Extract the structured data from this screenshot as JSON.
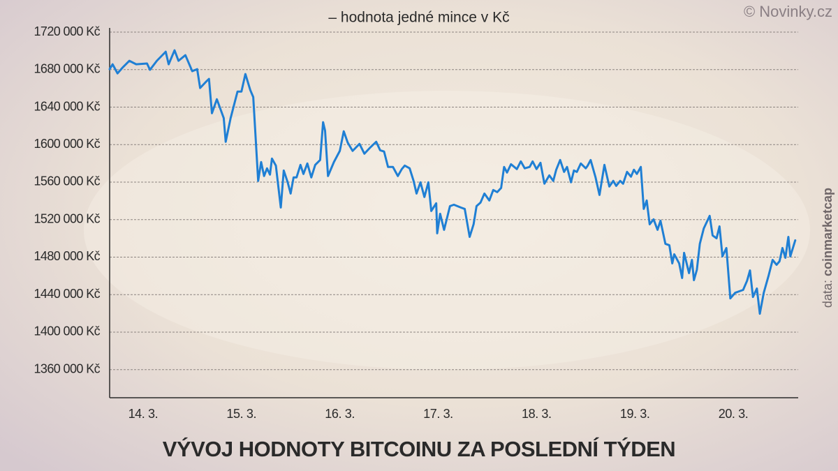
{
  "chart_data": {
    "type": "line",
    "title": "VÝVOJ HODNOTY BITCOINU ZA POSLEDNÍ TÝDEN",
    "subtitle": "– hodnota jedné mince v Kč",
    "copyright": "© Novinky.cz",
    "source_prefix": "data:",
    "source": "coinmarketcap",
    "color": "#1f7fd4",
    "grid": true,
    "xlim": [
      13.66,
      20.66
    ],
    "xticks": [
      {
        "value": 14,
        "label": "14. 3."
      },
      {
        "value": 15,
        "label": "15. 3."
      },
      {
        "value": 16,
        "label": "16. 3."
      },
      {
        "value": 17,
        "label": "17. 3."
      },
      {
        "value": 18,
        "label": "18. 3."
      },
      {
        "value": 19,
        "label": "19. 3."
      },
      {
        "value": 20,
        "label": "20. 3."
      }
    ],
    "ylim": [
      1330000,
      1723000
    ],
    "yticks": [
      {
        "value": 1360000,
        "label": "1360 000 Kč"
      },
      {
        "value": 1400000,
        "label": "1400 000 Kč"
      },
      {
        "value": 1440000,
        "label": "1440 000 Kč"
      },
      {
        "value": 1480000,
        "label": "1480 000 Kč"
      },
      {
        "value": 1520000,
        "label": "1520 000 Kč"
      },
      {
        "value": 1560000,
        "label": "1560 000 Kč"
      },
      {
        "value": 1600000,
        "label": "1600 000 Kč"
      },
      {
        "value": 1640000,
        "label": "1640 000 Kč"
      },
      {
        "value": 1680000,
        "label": "1680 000 Kč"
      },
      {
        "value": 1720000,
        "label": "1720 000 Kč"
      }
    ],
    "x": [
      13.66,
      13.69,
      13.74,
      13.79,
      13.86,
      13.93,
      14.04,
      14.07,
      14.14,
      14.23,
      14.26,
      14.32,
      14.36,
      14.43,
      14.5,
      14.55,
      14.58,
      14.64,
      14.67,
      14.7,
      14.75,
      14.82,
      14.84,
      14.89,
      14.96,
      15.0,
      15.04,
      15.09,
      15.12,
      15.17,
      15.2,
      15.23,
      15.26,
      15.29,
      15.31,
      15.35,
      15.4,
      15.43,
      15.47,
      15.5,
      15.53,
      15.56,
      15.6,
      15.63,
      15.67,
      15.71,
      15.75,
      15.8,
      15.83,
      15.85,
      15.88,
      15.94,
      16.0,
      16.04,
      16.08,
      16.13,
      16.2,
      16.25,
      16.31,
      16.37,
      16.41,
      16.45,
      16.49,
      16.54,
      16.59,
      16.63,
      16.66,
      16.71,
      16.75,
      16.78,
      16.82,
      16.86,
      16.9,
      16.93,
      16.98,
      16.99,
      17.02,
      17.06,
      17.12,
      17.16,
      17.23,
      17.27,
      17.32,
      17.36,
      17.39,
      17.43,
      17.47,
      17.52,
      17.56,
      17.6,
      17.64,
      17.67,
      17.7,
      17.74,
      17.8,
      17.84,
      17.88,
      17.93,
      17.96,
      18.0,
      18.04,
      18.08,
      18.13,
      18.17,
      18.2,
      18.24,
      18.28,
      18.31,
      18.35,
      18.38,
      18.41,
      18.45,
      18.5,
      18.52,
      18.55,
      18.6,
      18.64,
      18.69,
      18.74,
      18.78,
      18.81,
      18.85,
      18.88,
      18.92,
      18.96,
      18.99,
      19.02,
      19.06,
      19.09,
      19.12,
      19.15,
      19.19,
      19.23,
      19.26,
      19.31,
      19.35,
      19.38,
      19.4,
      19.45,
      19.48,
      19.5,
      19.55,
      19.58,
      19.6,
      19.63,
      19.66,
      19.7,
      19.76,
      19.79,
      19.83,
      19.86,
      19.89,
      19.93,
      19.97,
      20.02,
      20.06,
      20.1,
      20.14,
      20.17,
      20.2,
      20.24,
      20.27,
      20.31,
      20.36,
      20.4,
      20.44,
      20.47,
      20.5,
      20.53,
      20.56,
      20.58,
      20.63
    ],
    "values": [
      1680500,
      1685700,
      1676000,
      1682000,
      1689400,
      1685700,
      1686500,
      1679800,
      1689400,
      1699100,
      1685700,
      1700600,
      1689400,
      1695400,
      1678300,
      1680500,
      1660400,
      1667100,
      1670100,
      1633500,
      1648400,
      1628300,
      1603000,
      1628300,
      1656600,
      1656600,
      1675300,
      1658100,
      1650700,
      1561300,
      1581400,
      1566500,
      1574700,
      1568000,
      1585100,
      1577600,
      1532900,
      1572400,
      1559800,
      1547800,
      1565000,
      1565000,
      1578400,
      1568700,
      1579900,
      1565000,
      1578400,
      1583600,
      1623900,
      1614900,
      1566500,
      1581400,
      1593300,
      1614200,
      1602200,
      1593300,
      1600800,
      1590300,
      1597000,
      1603000,
      1594000,
      1592600,
      1576200,
      1576200,
      1566500,
      1573900,
      1577600,
      1574700,
      1561300,
      1547800,
      1559800,
      1544100,
      1559800,
      1529200,
      1537400,
      1505400,
      1526200,
      1509100,
      1534400,
      1535900,
      1532900,
      1531400,
      1501600,
      1515000,
      1534400,
      1538100,
      1547800,
      1540400,
      1551600,
      1549300,
      1553800,
      1576200,
      1570200,
      1579100,
      1573900,
      1582100,
      1574700,
      1576200,
      1582100,
      1573900,
      1580600,
      1558300,
      1567200,
      1561300,
      1573200,
      1583600,
      1570900,
      1576200,
      1559800,
      1572400,
      1570900,
      1579900,
      1574700,
      1577600,
      1583600,
      1565000,
      1546300,
      1578400,
      1555300,
      1561300,
      1556000,
      1561300,
      1558300,
      1570900,
      1565800,
      1573200,
      1568700,
      1576200,
      1531400,
      1540400,
      1515000,
      1520300,
      1509100,
      1518800,
      1494200,
      1492700,
      1473300,
      1483000,
      1473300,
      1457700,
      1484500,
      1462900,
      1477000,
      1455400,
      1466600,
      1494200,
      1510600,
      1524000,
      1503100,
      1500100,
      1512800,
      1480800,
      1489700,
      1436000,
      1442000,
      1443500,
      1445000,
      1454700,
      1465800,
      1437500,
      1446500,
      1419600,
      1442000,
      1460600,
      1477000,
      1471800,
      1475500,
      1489700,
      1479300,
      1501600,
      1480800,
      1497900
    ]
  }
}
